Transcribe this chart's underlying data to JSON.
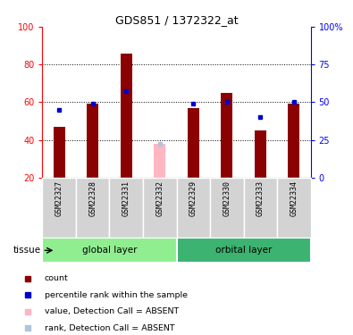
{
  "title": "GDS851 / 1372322_at",
  "samples": [
    "GSM22327",
    "GSM22328",
    "GSM22331",
    "GSM22332",
    "GSM22329",
    "GSM22330",
    "GSM22333",
    "GSM22334"
  ],
  "groups": [
    {
      "name": "global layer",
      "color": "#90ee90",
      "indices": [
        0,
        1,
        2,
        3
      ]
    },
    {
      "name": "orbital layer",
      "color": "#3cb371",
      "indices": [
        4,
        5,
        6,
        7
      ]
    }
  ],
  "red_values": [
    47,
    59,
    86,
    20,
    57,
    65,
    45,
    59
  ],
  "blue_values": [
    56,
    59,
    66,
    20,
    59,
    60,
    52,
    60
  ],
  "absent_mask": [
    false,
    false,
    false,
    true,
    false,
    false,
    false,
    false
  ],
  "absent_value": [
    null,
    null,
    null,
    38,
    null,
    null,
    null,
    null
  ],
  "absent_rank": [
    null,
    null,
    null,
    38,
    null,
    null,
    null,
    null
  ],
  "ylim_left": [
    20,
    100
  ],
  "yticks_left": [
    20,
    40,
    60,
    80,
    100
  ],
  "yticks_right": [
    0,
    25,
    50,
    75,
    100
  ],
  "ytick_labels_right": [
    "0",
    "25",
    "50",
    "75",
    "100%"
  ],
  "bar_color": "#8b0000",
  "dot_color": "#0000cd",
  "absent_bar_color": "#ffb6c1",
  "absent_dot_color": "#b0c4de",
  "grid_lines": [
    40,
    60,
    80
  ],
  "tissue_label": "tissue",
  "legend": [
    {
      "label": "count",
      "color": "#8b0000"
    },
    {
      "label": "percentile rank within the sample",
      "color": "#0000cd"
    },
    {
      "label": "value, Detection Call = ABSENT",
      "color": "#ffb6c1"
    },
    {
      "label": "rank, Detection Call = ABSENT",
      "color": "#b0c4de"
    }
  ]
}
